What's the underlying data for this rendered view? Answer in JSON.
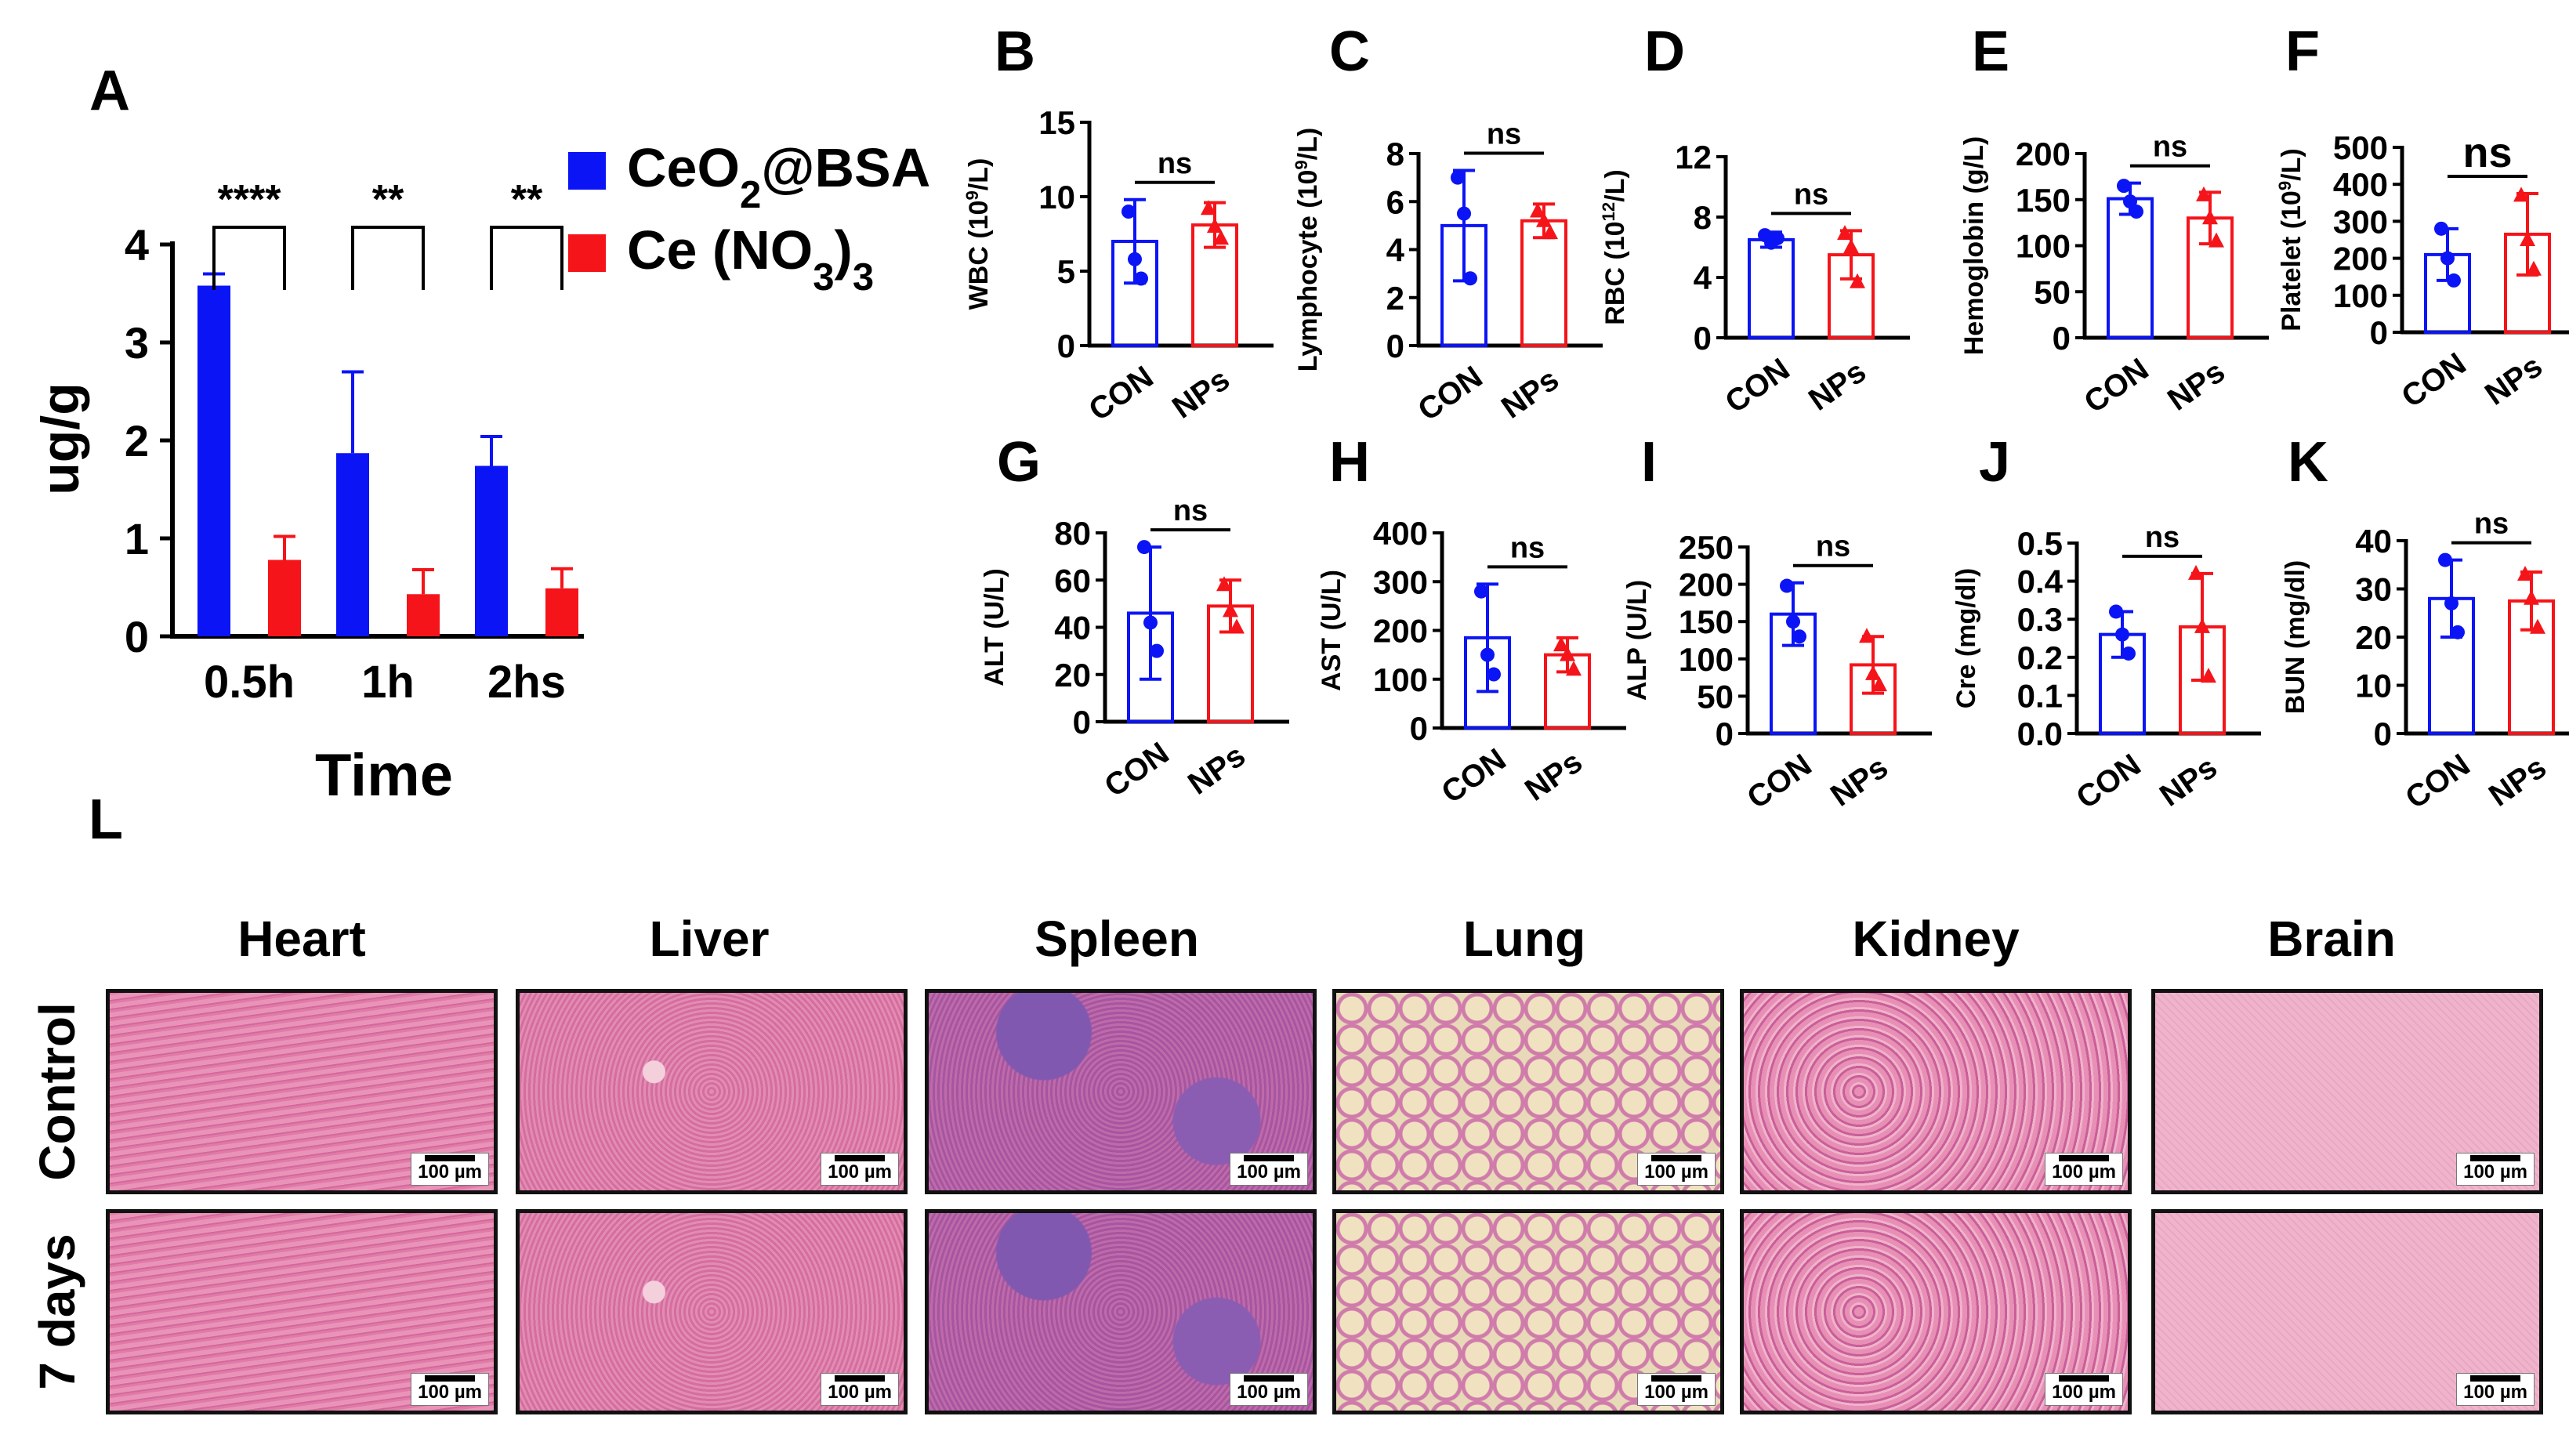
{
  "chart_data": [
    {
      "panel": "A",
      "type": "bar",
      "xlabel": "Time",
      "ylabel": "ug/g",
      "ylim": [
        0,
        4
      ],
      "yticks": [
        "0",
        "1",
        "2",
        "3",
        "4"
      ],
      "categories": [
        "0.5h",
        "1h",
        "2hs"
      ],
      "series": [
        {
          "name": "CeO₂@BSA",
          "color": "#0b14f5",
          "values": [
            3.58,
            1.87,
            1.74
          ],
          "errors": [
            0.12,
            0.83,
            0.3
          ]
        },
        {
          "name": "Ce (NO₃)₃",
          "color": "#f5141a",
          "values": [
            0.78,
            0.43,
            0.49
          ],
          "errors": [
            0.24,
            0.25,
            0.2
          ]
        }
      ],
      "significance": [
        "****",
        "**",
        "**"
      ],
      "legend_position": "right"
    },
    {
      "panel": "B",
      "type": "bar",
      "ylabel": "WBC (10⁹/L)",
      "ylim": [
        0,
        15
      ],
      "yticks": [
        "0",
        "5",
        "10",
        "15"
      ],
      "categories": [
        "CON",
        "NPs"
      ],
      "values": [
        7.0,
        8.1
      ],
      "errors": [
        2.8,
        1.5
      ],
      "points": [
        [
          9.0,
          5.8,
          4.5
        ],
        [
          9.2,
          8.0,
          7.2
        ]
      ],
      "significance": "ns"
    },
    {
      "panel": "C",
      "type": "bar",
      "ylabel": "Lymphocyte (10⁹/L)",
      "ylim": [
        0,
        8
      ],
      "yticks": [
        "0",
        "2",
        "4",
        "6",
        "8"
      ],
      "categories": [
        "CON",
        "NPs"
      ],
      "values": [
        5.0,
        5.2
      ],
      "errors": [
        2.3,
        0.7
      ],
      "points": [
        [
          7.0,
          5.5,
          2.8
        ],
        [
          5.6,
          5.2,
          4.7
        ]
      ],
      "significance": "ns"
    },
    {
      "panel": "D",
      "type": "bar",
      "ylabel": "RBC (10¹²/L)",
      "ylim": [
        0,
        12
      ],
      "yticks": [
        "0",
        "4",
        "8",
        "12"
      ],
      "categories": [
        "CON",
        "NPs"
      ],
      "values": [
        6.5,
        5.5
      ],
      "errors": [
        0.5,
        1.6
      ],
      "points": [
        [
          6.8,
          6.3,
          6.6
        ],
        [
          6.9,
          6.0,
          3.7
        ]
      ],
      "significance": "ns"
    },
    {
      "panel": "E",
      "type": "bar",
      "ylabel": "Hemoglobin (g/L)",
      "ylim": [
        0,
        200
      ],
      "yticks": [
        "0",
        "50",
        "100",
        "150",
        "200"
      ],
      "categories": [
        "CON",
        "NPs"
      ],
      "values": [
        151,
        130
      ],
      "errors": [
        17,
        28
      ],
      "points": [
        [
          165,
          148,
          137
        ],
        [
          155,
          130,
          105
        ]
      ],
      "significance": "ns"
    },
    {
      "panel": "F",
      "type": "bar",
      "ylabel": "Platelet (10⁹/L)",
      "ylim": [
        0,
        500
      ],
      "yticks": [
        "0",
        "100",
        "200",
        "300",
        "400",
        "500"
      ],
      "categories": [
        "CON",
        "NPs"
      ],
      "values": [
        210,
        265
      ],
      "errors": [
        70,
        110
      ],
      "points": [
        [
          280,
          200,
          140
        ],
        [
          370,
          250,
          170
        ]
      ],
      "significance": "ns"
    },
    {
      "panel": "G",
      "type": "bar",
      "ylabel": "ALT (U/L)",
      "ylim": [
        0,
        80
      ],
      "yticks": [
        "0",
        "20",
        "40",
        "60",
        "80"
      ],
      "categories": [
        "CON",
        "NPs"
      ],
      "values": [
        46,
        49
      ],
      "errors": [
        28,
        11
      ],
      "points": [
        [
          74,
          42,
          30
        ],
        [
          58,
          47,
          40
        ]
      ],
      "significance": "ns"
    },
    {
      "panel": "H",
      "type": "bar",
      "ylabel": "AST (U/L)",
      "ylim": [
        0,
        400
      ],
      "yticks": [
        "0",
        "100",
        "200",
        "300",
        "400"
      ],
      "categories": [
        "CON",
        "NPs"
      ],
      "values": [
        185,
        150
      ],
      "errors": [
        110,
        35
      ],
      "points": [
        [
          280,
          150,
          110
        ],
        [
          170,
          150,
          120
        ]
      ],
      "significance": "ns"
    },
    {
      "panel": "I",
      "type": "bar",
      "ylabel": "ALP (U/L)",
      "ylim": [
        0,
        250
      ],
      "yticks": [
        "0",
        "50",
        "100",
        "150",
        "200",
        "250"
      ],
      "categories": [
        "CON",
        "NPs"
      ],
      "values": [
        160,
        92
      ],
      "errors": [
        42,
        38
      ],
      "points": [
        [
          198,
          150,
          130
        ],
        [
          130,
          80,
          65
        ]
      ],
      "significance": "ns"
    },
    {
      "panel": "J",
      "type": "bar",
      "ylabel": "Cre (mg/dl)",
      "ylim": [
        0,
        0.5
      ],
      "yticks": [
        "0.0",
        "0.1",
        "0.2",
        "0.3",
        "0.4",
        "0.5"
      ],
      "categories": [
        "CON",
        "NPs"
      ],
      "values": [
        0.26,
        0.28
      ],
      "errors": [
        0.06,
        0.14
      ],
      "points": [
        [
          0.32,
          0.26,
          0.21
        ],
        [
          0.42,
          0.28,
          0.15
        ]
      ],
      "significance": "ns"
    },
    {
      "panel": "K",
      "type": "bar",
      "ylabel": "BUN (mg/dl)",
      "ylim": [
        0,
        40
      ],
      "yticks": [
        "0",
        "10",
        "20",
        "30",
        "40"
      ],
      "categories": [
        "CON",
        "NPs"
      ],
      "values": [
        28,
        27.5
      ],
      "errors": [
        8,
        6
      ],
      "points": [
        [
          36,
          27,
          21
        ],
        [
          33,
          28,
          22
        ]
      ],
      "significance": "ns"
    }
  ],
  "histology": {
    "panel": "L",
    "columns": [
      "Heart",
      "Liver",
      "Spleen",
      "Lung",
      "Kidney",
      "Brain"
    ],
    "rows": [
      "Control",
      "7 days"
    ],
    "scale_bar": "100 µm"
  },
  "colors": {
    "con": "#0b14f5",
    "nps": "#f5141a",
    "text": "#000000"
  }
}
